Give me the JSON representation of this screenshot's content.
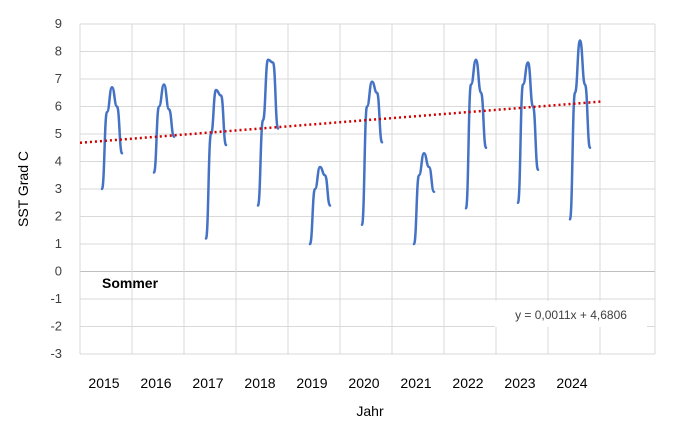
{
  "chart_data": {
    "type": "line",
    "xlabel": "Jahr",
    "ylabel": "SST Grad C",
    "ylim": [
      -3,
      9
    ],
    "yticks": [
      -3,
      -2,
      -1,
      0,
      1,
      2,
      3,
      4,
      5,
      6,
      7,
      8,
      9
    ],
    "grid": true,
    "annotation": "Sommer",
    "trendline_label": "y = 0,0011x + 4,6806",
    "trendline": {
      "slope_per_year": 0.0132,
      "start_value": 4.68,
      "color": "#d00000",
      "style": "dotted"
    },
    "series_color": "#4472c4",
    "years": [
      {
        "label": "2015",
        "values": [
          3.0,
          5.8,
          6.7,
          6.0,
          4.3
        ]
      },
      {
        "label": "2016",
        "values": [
          3.6,
          6.0,
          6.8,
          5.9,
          4.9
        ]
      },
      {
        "label": "2017",
        "values": [
          1.2,
          5.0,
          6.6,
          6.4,
          4.6
        ]
      },
      {
        "label": "2018",
        "values": [
          2.4,
          5.5,
          7.7,
          7.6,
          5.2
        ]
      },
      {
        "label": "2019",
        "values": [
          1.0,
          3.0,
          3.8,
          3.5,
          2.4
        ]
      },
      {
        "label": "2020",
        "values": [
          1.7,
          6.0,
          6.9,
          6.5,
          4.7
        ]
      },
      {
        "label": "2021",
        "values": [
          1.0,
          3.5,
          4.3,
          3.8,
          2.9
        ]
      },
      {
        "label": "2022",
        "values": [
          2.3,
          6.8,
          7.7,
          6.5,
          4.5
        ]
      },
      {
        "label": "2023",
        "values": [
          2.5,
          6.8,
          7.6,
          6.0,
          3.7
        ]
      },
      {
        "label": "2024",
        "values": [
          1.9,
          6.5,
          8.4,
          6.8,
          4.5
        ]
      }
    ]
  }
}
